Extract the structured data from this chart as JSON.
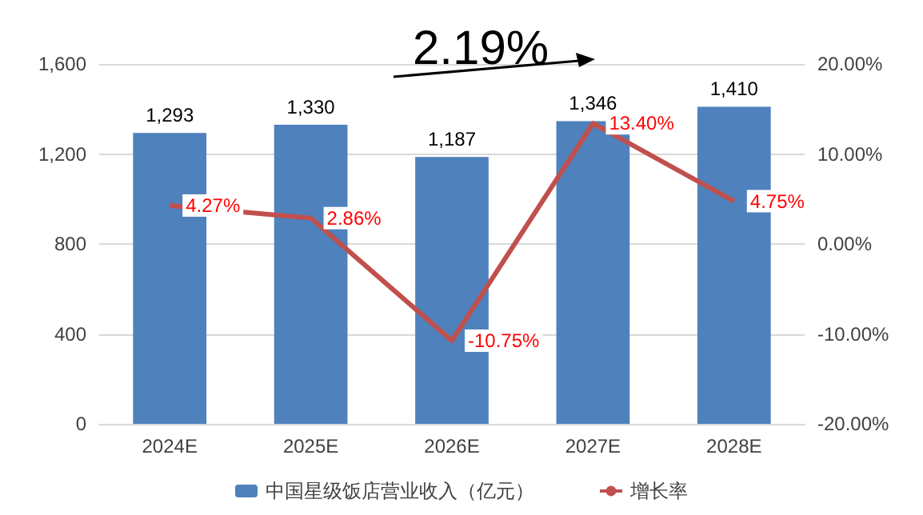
{
  "chart_data": {
    "type": "bar",
    "categories": [
      "2024E",
      "2025E",
      "2026E",
      "2027E",
      "2028E"
    ],
    "series": [
      {
        "name": "中国星级饭店营业收入（亿元）",
        "color": "#4f81bd",
        "values": [
          1293,
          1330,
          1187,
          1346,
          1410
        ],
        "value_labels": [
          "1,293",
          "1,330",
          "1,187",
          "1,346",
          "1,410"
        ]
      },
      {
        "name": "增长率",
        "type": "line",
        "axis": "y2",
        "color": "#c0504d",
        "values": [
          4.27,
          2.86,
          -10.75,
          13.4,
          4.75
        ],
        "value_labels": [
          "4.27%",
          "2.86%",
          "-10.75%",
          "13.40%",
          "4.75%"
        ]
      }
    ],
    "ylim": [
      0,
      1600
    ],
    "yticks": [
      {
        "value": 0,
        "label": "0"
      },
      {
        "value": 400,
        "label": "400"
      },
      {
        "value": 800,
        "label": "800"
      },
      {
        "value": 1200,
        "label": "1,200"
      },
      {
        "value": 1600,
        "label": "1,600"
      }
    ],
    "y2lim": [
      -20,
      20
    ],
    "y2ticks": [
      {
        "value": -20,
        "label": "-20.00%"
      },
      {
        "value": -10,
        "label": "-10.00%"
      },
      {
        "value": 0,
        "label": "0.00%"
      },
      {
        "value": 10,
        "label": "10.00%"
      },
      {
        "value": 20,
        "label": "20.00%"
      }
    ],
    "grid": "y",
    "legend": "bottom",
    "marker": "none",
    "line_style": "solid",
    "annotations": [
      "2.19%"
    ]
  }
}
